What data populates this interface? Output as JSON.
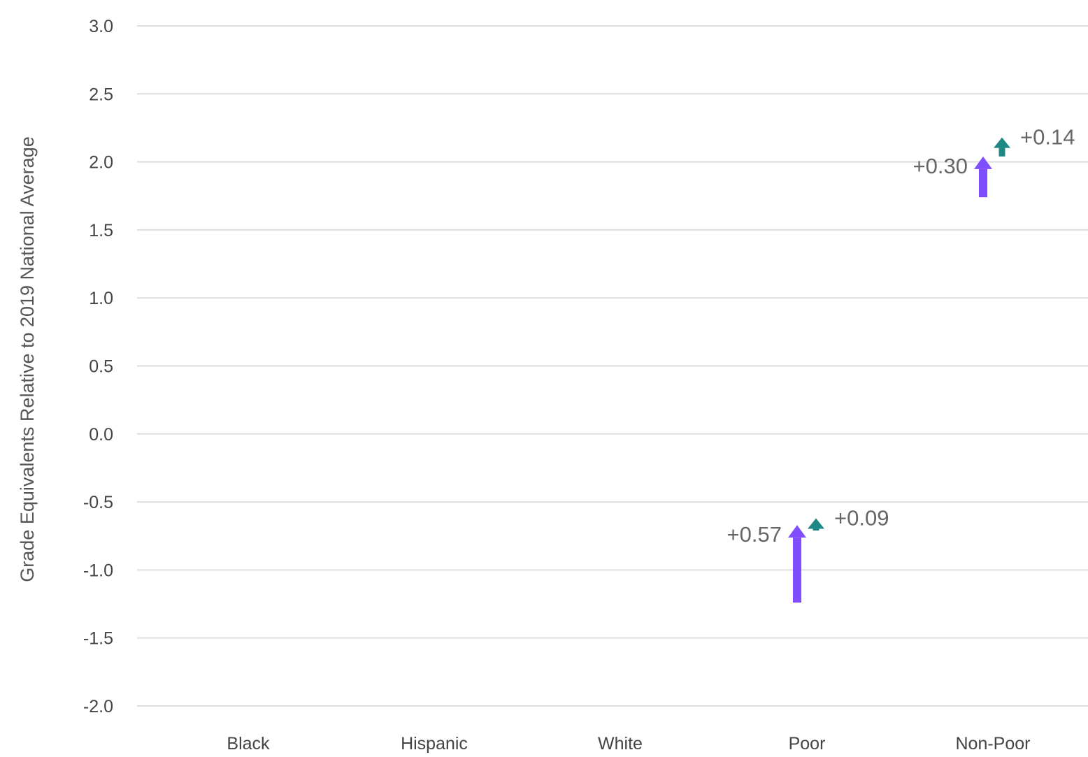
{
  "chart_data": {
    "type": "arrow",
    "title": "",
    "xlabel": "",
    "ylabel": "Grade Equivalents Relative to 2019 National Average",
    "ylim": [
      -2.0,
      3.0
    ],
    "y_ticks": [
      "3.0",
      "2.5",
      "2.0",
      "1.5",
      "1.0",
      "0.5",
      "0.0",
      "-0.5",
      "-1.0",
      "-1.5",
      "-2.0"
    ],
    "y_tick_values": [
      3.0,
      2.5,
      2.0,
      1.5,
      1.0,
      0.5,
      0.0,
      -0.5,
      -1.0,
      -1.5,
      -2.0
    ],
    "grid": true,
    "categories": [
      "Black",
      "Hispanic",
      "White",
      "Poor",
      "Non-Poor"
    ],
    "series": [
      {
        "color": "#7f4fff",
        "arrows": [
          {
            "category": "Poor",
            "from": -1.24,
            "to": -0.67,
            "label": "+0.57"
          },
          {
            "category": "Non-Poor",
            "from": 1.74,
            "to": 2.04,
            "label": "+0.30"
          }
        ]
      },
      {
        "color": "#1f8784",
        "arrows": [
          {
            "category": "Poor",
            "from": -0.71,
            "to": -0.62,
            "label": "+0.09"
          },
          {
            "category": "Non-Poor",
            "from": 2.04,
            "to": 2.18,
            "label": "+0.14"
          }
        ]
      }
    ]
  }
}
